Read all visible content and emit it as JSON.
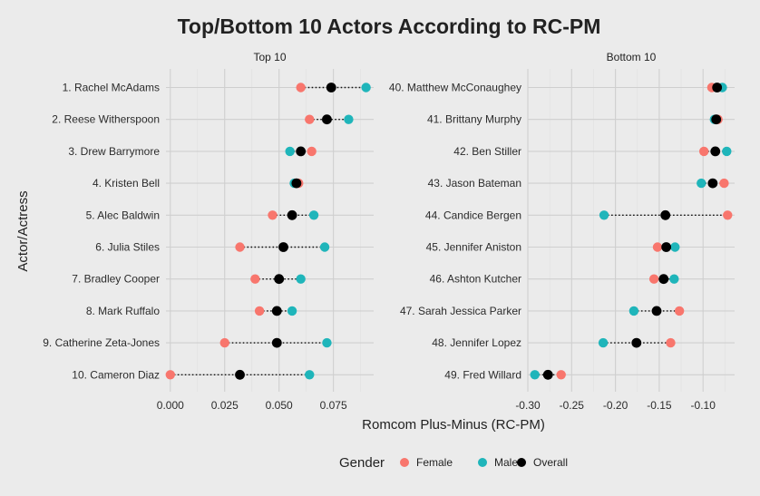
{
  "chart_data": {
    "type": "scatter",
    "title": "Top/Bottom 10 Actors According to RC-PM",
    "xlabel": "Romcom Plus-Minus (RC-PM)",
    "ylabel": "Actor/Actress",
    "legend": {
      "title": "Gender",
      "position": "bottom",
      "entries": [
        {
          "label": "Female",
          "color": "#f8766d"
        },
        {
          "label": "Male",
          "color": "#1fb5ba"
        },
        {
          "label": "Overall",
          "color": "#000000"
        }
      ]
    },
    "grid": true,
    "panels": [
      {
        "strip": "Top 10",
        "xlim": [
          -0.002,
          0.0935
        ],
        "xticks": [
          0.0,
          0.025,
          0.05,
          0.075
        ],
        "xtick_labels": [
          "0.000",
          "0.025",
          "0.050",
          "0.075"
        ],
        "rows": [
          {
            "label": "1. Rachel McAdams",
            "female": 0.06,
            "male": 0.09,
            "overall": 0.074
          },
          {
            "label": "2. Reese Witherspoon",
            "female": 0.064,
            "male": 0.082,
            "overall": 0.072
          },
          {
            "label": "3. Drew Barrymore",
            "female": 0.065,
            "male": 0.055,
            "overall": 0.06
          },
          {
            "label": "4. Kristen Bell",
            "female": 0.059,
            "male": 0.057,
            "overall": 0.058
          },
          {
            "label": "5. Alec Baldwin",
            "female": 0.047,
            "male": 0.066,
            "overall": 0.056
          },
          {
            "label": "6. Julia Stiles",
            "female": 0.032,
            "male": 0.071,
            "overall": 0.052
          },
          {
            "label": "7. Bradley Cooper",
            "female": 0.039,
            "male": 0.06,
            "overall": 0.05
          },
          {
            "label": "8. Mark Ruffalo",
            "female": 0.041,
            "male": 0.056,
            "overall": 0.049
          },
          {
            "label": "9. Catherine Zeta-Jones",
            "female": 0.025,
            "male": 0.072,
            "overall": 0.049
          },
          {
            "label": "10. Cameron Diaz",
            "female": 0.0,
            "male": 0.064,
            "overall": 0.032
          }
        ]
      },
      {
        "strip": "Bottom 10",
        "xlim": [
          -0.3,
          -0.064
        ],
        "xticks": [
          -0.3,
          -0.25,
          -0.2,
          -0.15,
          -0.1
        ],
        "xtick_labels": [
          "-0.30",
          "-0.25",
          "-0.20",
          "-0.15",
          "-0.10"
        ],
        "rows": [
          {
            "label": "40. Matthew McConaughey",
            "female": -0.09,
            "male": -0.078,
            "overall": -0.084
          },
          {
            "label": "41. Brittany Murphy",
            "female": -0.083,
            "male": -0.087,
            "overall": -0.085
          },
          {
            "label": "42. Ben Stiller",
            "female": -0.099,
            "male": -0.073,
            "overall": -0.086
          },
          {
            "label": "43. Jason Bateman",
            "female": -0.076,
            "male": -0.102,
            "overall": -0.089
          },
          {
            "label": "44. Candice Bergen",
            "female": -0.072,
            "male": -0.213,
            "overall": -0.143
          },
          {
            "label": "45. Jennifer Aniston",
            "female": -0.152,
            "male": -0.132,
            "overall": -0.142
          },
          {
            "label": "46. Ashton Kutcher",
            "female": -0.156,
            "male": -0.133,
            "overall": -0.145
          },
          {
            "label": "47. Sarah Jessica Parker",
            "female": -0.127,
            "male": -0.179,
            "overall": -0.153
          },
          {
            "label": "48. Jennifer Lopez",
            "female": -0.137,
            "male": -0.214,
            "overall": -0.176
          },
          {
            "label": "49. Fred Willard",
            "female": -0.262,
            "male": -0.292,
            "overall": -0.277
          }
        ]
      }
    ]
  }
}
